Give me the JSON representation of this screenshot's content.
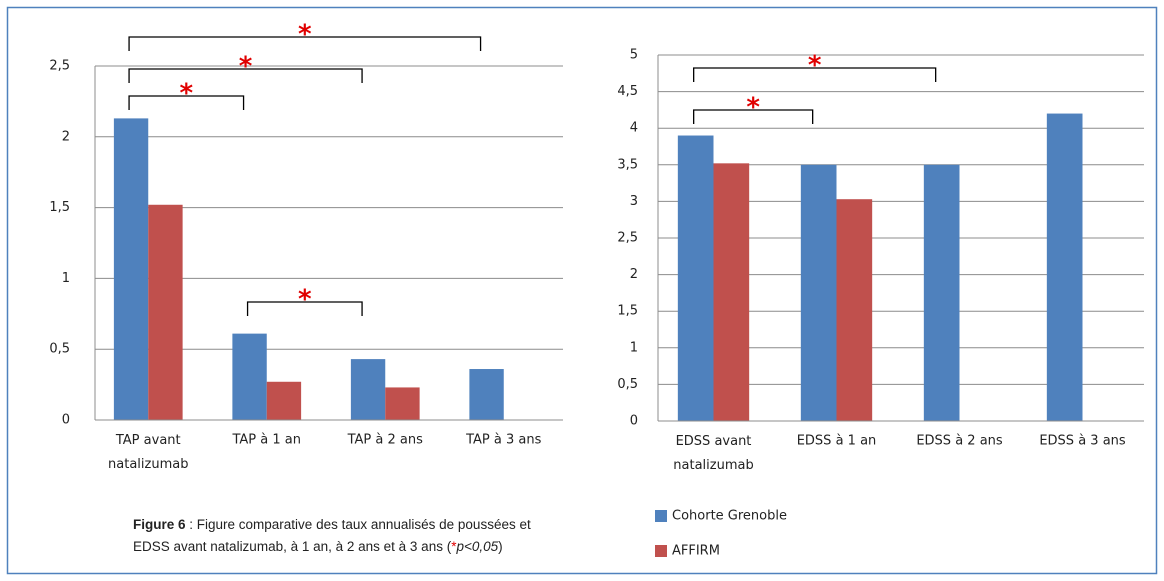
{
  "chart_data": [
    {
      "type": "bar",
      "categories": [
        "TAP avant natalizumab",
        "TAP à 1 an",
        "TAP à 2 ans",
        "TAP à 3 ans"
      ],
      "series": [
        {
          "name": "Cohorte Grenoble",
          "color": "#4f81bd",
          "values": [
            2.13,
            0.61,
            0.43,
            0.36
          ]
        },
        {
          "name": "AFFIRM",
          "color": "#c0504d",
          "values": [
            1.52,
            0.27,
            0.23,
            null
          ]
        }
      ],
      "ylim": [
        0,
        2.5
      ],
      "yticks": [
        0,
        {
          "value": 0.5,
          "label": "0,5"
        },
        1,
        {
          "value": 1.5,
          "label": "1,5"
        },
        2,
        {
          "value": 2.5,
          "label": "2,5"
        }
      ],
      "grid": true,
      "brackets": [
        {
          "text": "*",
          "from": 0,
          "to": 3
        },
        {
          "text": "*",
          "from": 0,
          "to": 2
        },
        {
          "text": "*",
          "from": 0,
          "to": 1
        },
        {
          "text": "*",
          "from": 1,
          "to": 2
        }
      ]
    },
    {
      "type": "bar",
      "categories": [
        "EDSS avant natalizumab",
        "EDSS à 1 an",
        "EDSS à 2 ans",
        "EDSS à 3 ans"
      ],
      "series": [
        {
          "name": "Cohorte Grenoble",
          "color": "#4f81bd",
          "values": [
            3.9,
            3.5,
            3.5,
            4.2
          ]
        },
        {
          "name": "AFFIRM",
          "color": "#c0504d",
          "values": [
            3.52,
            3.03,
            null,
            null
          ]
        }
      ],
      "ylim": [
        0,
        5
      ],
      "yticks": [
        0,
        {
          "value": 0.5,
          "label": "0,5"
        },
        1,
        {
          "value": 1.5,
          "label": "1,5"
        },
        2,
        {
          "value": 2.5,
          "label": "2,5"
        },
        3,
        {
          "value": 3.5,
          "label": "3,5"
        },
        4,
        {
          "value": 4.5,
          "label": "4,5"
        },
        5
      ],
      "grid": true,
      "legend": "bottom",
      "brackets": [
        {
          "text": "*",
          "from": 0,
          "to": 2
        },
        {
          "text": "*",
          "from": 0,
          "to": 1
        }
      ]
    }
  ],
  "caption": {
    "label": "Figure 6",
    "text": " : Figure  comparative des taux annualisés de poussées et EDSS avant natalizumab, à 1 an, à 2 ans et à 3 ans (",
    "star": "*",
    "p": "p<0,05",
    "close": ")"
  }
}
